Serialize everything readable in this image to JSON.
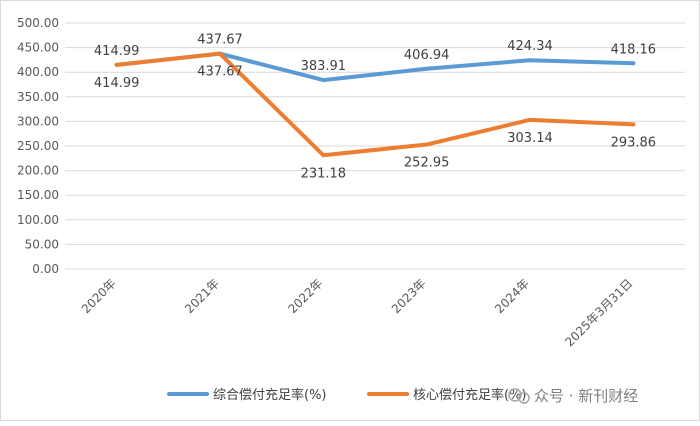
{
  "chart_data": {
    "type": "line",
    "title": "",
    "xlabel": "",
    "ylabel": "",
    "categories": [
      "2020年",
      "2021年",
      "2022年",
      "2023年",
      "2024年",
      "2025年3月31日"
    ],
    "ylim": [
      0,
      500
    ],
    "yticks": [
      "0.00",
      "50.00",
      "100.00",
      "150.00",
      "200.00",
      "250.00",
      "300.00",
      "350.00",
      "400.00",
      "450.00",
      "500.00"
    ],
    "grid": true,
    "legend_position": "bottom",
    "series": [
      {
        "name": "综合偿付充足率(%)",
        "color": "#5B9BD5",
        "values": [
          414.99,
          437.67,
          383.91,
          406.94,
          424.34,
          418.16
        ],
        "labels": [
          "414.99",
          "437.67",
          "383.91",
          "406.94",
          "424.34",
          "418.16"
        ],
        "label_position": [
          "above",
          "above",
          "above",
          "above",
          "above",
          "above"
        ]
      },
      {
        "name": "核心偿付充足率(%)",
        "color": "#ED7D31",
        "values": [
          414.99,
          437.67,
          231.18,
          252.95,
          303.14,
          293.86
        ],
        "labels": [
          "414.99",
          "437.67",
          "231.18",
          "252.95",
          "303.14",
          "293.86"
        ],
        "label_position": [
          "below",
          "below",
          "below",
          "below",
          "below",
          "below"
        ]
      }
    ]
  },
  "watermark": {
    "text": "众号 · 新刊财经"
  }
}
